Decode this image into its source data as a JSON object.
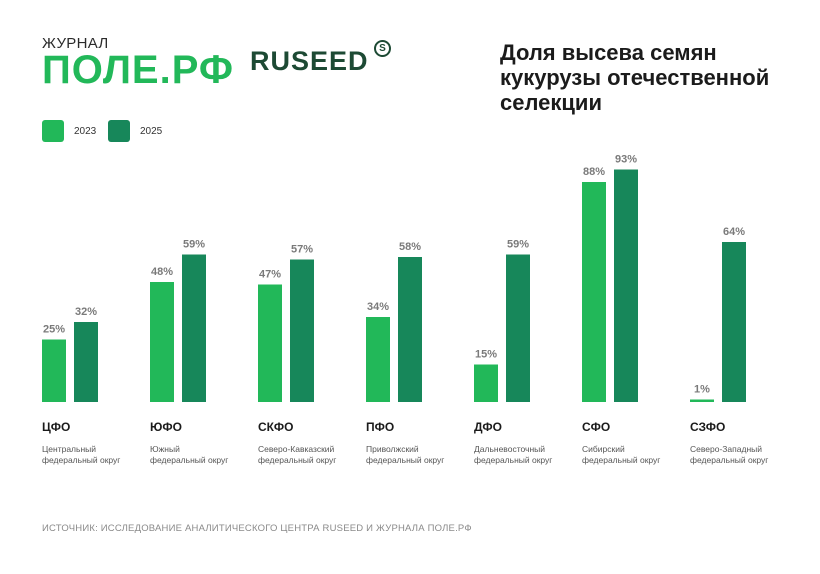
{
  "header": {
    "logo_small": "ЖУРНАЛ",
    "logo_big": "ПОЛЕ.РФ",
    "brand": "RUSEED",
    "brand_mark": "S",
    "title": "Доля высева семян кукурузы отечественной селекции"
  },
  "colors": {
    "y2023": "#22b859",
    "y2025": "#17875a",
    "labels": "#7a7a7a"
  },
  "chart_data": {
    "type": "bar",
    "title": "Доля высева семян кукурузы отечественной селекции",
    "xlabel": "",
    "ylabel": "",
    "ylim": [
      0,
      100
    ],
    "unit": "%",
    "grid": false,
    "legend_position": "top-left",
    "categories": [
      "ЦФО",
      "ЮФО",
      "СКФО",
      "ПФО",
      "ДФО",
      "СФО",
      "СЗФО"
    ],
    "category_names": [
      "Центральный федеральный округ",
      "Южный федеральный округ",
      "Северо-Кавказский федеральный округ",
      "Приволжский федеральный округ",
      "Дальневосточный федеральный округ",
      "Сибирский федеральный округ",
      "Северо-Западный федеральный округ"
    ],
    "series": [
      {
        "name": "2023",
        "values": [
          25,
          48,
          47,
          34,
          15,
          88,
          1
        ]
      },
      {
        "name": "2025",
        "values": [
          32,
          59,
          57,
          58,
          59,
          93,
          64
        ]
      }
    ]
  },
  "footer": {
    "source": "ИСТОЧНИК: ИССЛЕДОВАНИЕ АНАЛИТИЧЕСКОГО ЦЕНТРА RUSEED И ЖУРНАЛА ПОЛЕ.РФ"
  }
}
